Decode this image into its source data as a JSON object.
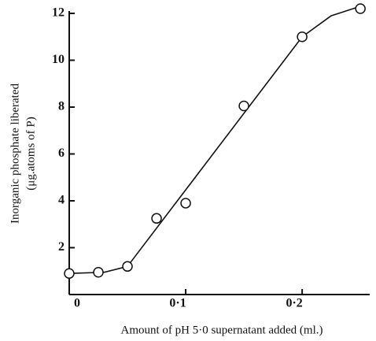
{
  "chart_data": {
    "type": "scatter",
    "xlabel": "Amount of pH 5·0 supernatant added (ml.)",
    "ylabel": [
      "Inorganic phosphate liberated",
      "(μg.atoms of P)"
    ],
    "x": [
      0,
      0.025,
      0.05,
      0.075,
      0.1,
      0.15,
      0.2,
      0.25
    ],
    "values": [
      0.9,
      0.95,
      1.2,
      3.25,
      3.9,
      8.05,
      11.0,
      12.2
    ],
    "fit": {
      "x": [
        0,
        0.03,
        0.05,
        0.2,
        0.225,
        0.25
      ],
      "values": [
        0.9,
        0.95,
        1.2,
        11.0,
        11.9,
        12.3
      ]
    },
    "xlim": [
      0,
      0.258
    ],
    "ylim": [
      0,
      12.1
    ],
    "xticks": [
      0,
      {
        "value": 0.1,
        "label": "0·1"
      },
      {
        "value": 0.2,
        "label": "0·2"
      }
    ],
    "yticks": [
      2,
      4,
      6,
      8,
      10,
      12
    ],
    "color": "#111"
  }
}
